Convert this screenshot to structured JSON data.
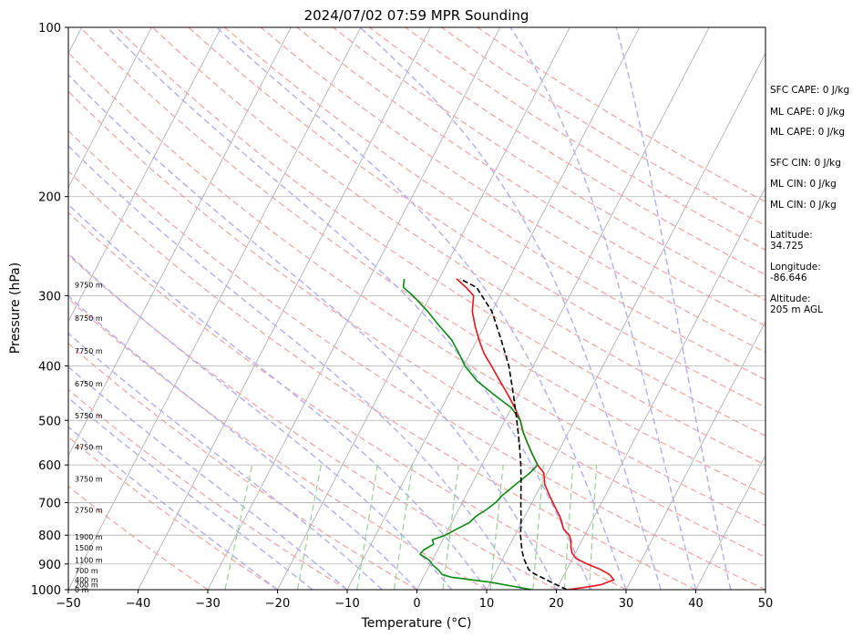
{
  "chart_data": {
    "type": "line",
    "subtype": "skew-T log-P sounding",
    "title": "2024/07/02 07:59 MPR Sounding",
    "xlabel": "Temperature (°C)",
    "ylabel": "Pressure (hPa)",
    "xlim": [
      -50,
      50
    ],
    "ylim": [
      1000,
      100
    ],
    "y_scale": "log",
    "x_ticks": [
      -50,
      -40,
      -30,
      -20,
      -10,
      0,
      10,
      20,
      30,
      40,
      50
    ],
    "y_ticks": [
      1000,
      900,
      800,
      700,
      600,
      500,
      400,
      300,
      200,
      100
    ],
    "grid": true,
    "colors": {
      "temperature": "#e8141b",
      "dewpoint": "#0a8a12",
      "parcel": "#000000",
      "isotherms": "#aaaaaa",
      "dry_adiabats": "#f4a7a7",
      "moist_adiabats": "#b3b3f2",
      "mixing_ratio": "#9fd49f"
    },
    "series": [
      {
        "key": "temperature",
        "points": [
          [
            21.5,
            1000
          ],
          [
            24,
            990
          ],
          [
            26,
            980
          ],
          [
            27.5,
            960
          ],
          [
            26.5,
            940
          ],
          [
            24.8,
            920
          ],
          [
            22.5,
            900
          ],
          [
            20.5,
            880
          ],
          [
            19.5,
            860
          ],
          [
            18.9,
            840
          ],
          [
            18.5,
            820
          ],
          [
            17.8,
            800
          ],
          [
            16.5,
            780
          ],
          [
            15.8,
            760
          ],
          [
            15,
            740
          ],
          [
            14,
            720
          ],
          [
            13,
            700
          ],
          [
            12,
            680
          ],
          [
            10.5,
            650
          ],
          [
            9.5,
            620
          ],
          [
            8,
            600
          ],
          [
            6.5,
            575
          ],
          [
            5,
            550
          ],
          [
            3.5,
            525
          ],
          [
            2.2,
            500
          ],
          [
            0.5,
            475
          ],
          [
            -1.5,
            450
          ],
          [
            -3.7,
            425
          ],
          [
            -6,
            400
          ],
          [
            -8,
            380
          ],
          [
            -9.7,
            360
          ],
          [
            -11.3,
            340
          ],
          [
            -12.8,
            320
          ],
          [
            -13.8,
            300
          ],
          [
            -15.5,
            290
          ],
          [
            -17.5,
            280
          ]
        ]
      },
      {
        "key": "dewpoint",
        "points": [
          [
            16.5,
            1000
          ],
          [
            10,
            970
          ],
          [
            4,
            950
          ],
          [
            2.5,
            940
          ],
          [
            1.5,
            920
          ],
          [
            0.5,
            905
          ],
          [
            -0.5,
            885
          ],
          [
            -2.2,
            865
          ],
          [
            -2,
            850
          ],
          [
            -1,
            830
          ],
          [
            -1.5,
            815
          ],
          [
            0,
            800
          ],
          [
            1.2,
            780
          ],
          [
            2.5,
            760
          ],
          [
            3,
            740
          ],
          [
            4,
            720
          ],
          [
            4.8,
            700
          ],
          [
            5.2,
            680
          ],
          [
            6.3,
            650
          ],
          [
            7.5,
            620
          ],
          [
            8,
            600
          ],
          [
            6.5,
            575
          ],
          [
            5,
            550
          ],
          [
            3.5,
            525
          ],
          [
            2.2,
            500
          ],
          [
            0,
            475
          ],
          [
            -3.5,
            450
          ],
          [
            -7,
            425
          ],
          [
            -9.8,
            400
          ],
          [
            -11.6,
            380
          ],
          [
            -13.6,
            360
          ],
          [
            -16.4,
            340
          ],
          [
            -19.2,
            320
          ],
          [
            -22.5,
            300
          ],
          [
            -24.5,
            290
          ],
          [
            -25,
            280
          ]
        ]
      },
      {
        "key": "parcel",
        "points": [
          [
            21.5,
            1000
          ],
          [
            17.8,
            960
          ],
          [
            15.5,
            935
          ],
          [
            14.5,
            920
          ],
          [
            13,
            880
          ],
          [
            12.1,
            850
          ],
          [
            10.8,
            800
          ],
          [
            9.7,
            750
          ],
          [
            8.4,
            700
          ],
          [
            7.1,
            650
          ],
          [
            5.6,
            600
          ],
          [
            3.8,
            550
          ],
          [
            1.7,
            500
          ],
          [
            -0.7,
            450
          ],
          [
            -3.5,
            400
          ],
          [
            -6.5,
            360
          ],
          [
            -10,
            320
          ],
          [
            -14,
            290
          ],
          [
            -17,
            280
          ]
        ]
      }
    ],
    "altitude_labels": [
      {
        "label": "0 m",
        "p": 1000
      },
      {
        "label": "200 m",
        "p": 980
      },
      {
        "label": "400 m",
        "p": 960
      },
      {
        "label": "700 m",
        "p": 925
      },
      {
        "label": "1100 m",
        "p": 885
      },
      {
        "label": "1500 m",
        "p": 842
      },
      {
        "label": "1900 m",
        "p": 805
      },
      {
        "label": "2750 m",
        "p": 722
      },
      {
        "label": "3750 m",
        "p": 636
      },
      {
        "label": "4750 m",
        "p": 558
      },
      {
        "label": "5750 m",
        "p": 490
      },
      {
        "label": "6750 m",
        "p": 430
      },
      {
        "label": "7750 m",
        "p": 376
      },
      {
        "label": "8750 m",
        "p": 329
      },
      {
        "label": "9750 m",
        "p": 287
      }
    ]
  },
  "side_panel": {
    "sfc_cape": "SFC CAPE: 0 J/kg",
    "ml_cape_1": "ML CAPE: 0 J/kg",
    "ml_cape_2": "ML CAPE: 0 J/kg",
    "sfc_cin": "SFC CIN: 0 J/kg",
    "ml_cin_1": "ML CIN: 0 J/kg",
    "ml_cin_2": "ML CIN: 0 J/kg",
    "latitude_label": "Latitude:",
    "latitude_value": "34.725",
    "longitude_label": "Longitude:",
    "longitude_value": "-86.646",
    "altitude_label": "Altitude:",
    "altitude_value": "205 m AGL"
  }
}
